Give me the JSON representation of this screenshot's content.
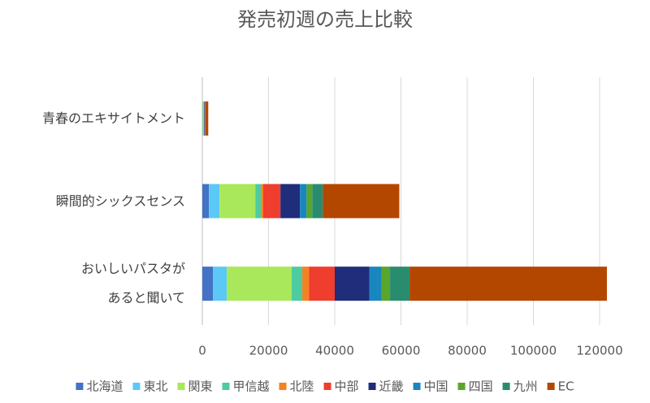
{
  "chart_data": {
    "type": "stacked-bar-horizontal",
    "title": "発売初週の売上比較",
    "categories": [
      "青春のエキサイトメント",
      "瞬間的シックスセンス",
      "おいしいパスタが\nあると聞いて"
    ],
    "series": [
      {
        "name": "北海道",
        "color": "#4472c4",
        "values": [
          50,
          2000,
          3200
        ]
      },
      {
        "name": "東北",
        "color": "#5bc8f5",
        "values": [
          80,
          3200,
          4200
        ]
      },
      {
        "name": "関東",
        "color": "#a9e85a",
        "values": [
          250,
          10800,
          19600
        ]
      },
      {
        "name": "甲信越",
        "color": "#4ecba0",
        "values": [
          50,
          1700,
          3200
        ]
      },
      {
        "name": "北陸",
        "color": "#f58220",
        "values": [
          30,
          700,
          2000
        ]
      },
      {
        "name": "中部",
        "color": "#ef3d2e",
        "values": [
          100,
          5200,
          7800
        ]
      },
      {
        "name": "近畿",
        "color": "#1f2d7a",
        "values": [
          150,
          5900,
          10500
        ]
      },
      {
        "name": "中国",
        "color": "#1a86c0",
        "values": [
          50,
          2000,
          3700
        ]
      },
      {
        "name": "四国",
        "color": "#5aa62b",
        "values": [
          50,
          1700,
          2500
        ]
      },
      {
        "name": "九州",
        "color": "#2a8c6e",
        "values": [
          80,
          3200,
          5900
        ]
      },
      {
        "name": "EC",
        "color": "#b34700",
        "values": [
          900,
          23100,
          59600
        ]
      }
    ],
    "xlim": [
      0,
      120000
    ],
    "xticks": [
      0,
      20000,
      40000,
      60000,
      80000,
      100000,
      120000
    ],
    "grid": true,
    "legend": "bottom"
  }
}
